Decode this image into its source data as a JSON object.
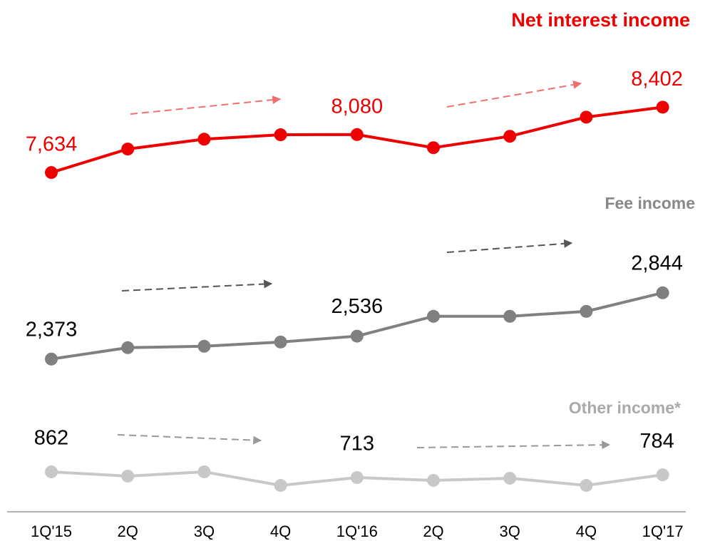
{
  "chart_data": {
    "type": "line",
    "categories": [
      "1Q'15",
      "2Q",
      "3Q",
      "4Q",
      "1Q'16",
      "2Q",
      "3Q",
      "4Q",
      "1Q'17"
    ],
    "series": [
      {
        "name": "Net interest income",
        "color": "#ee0000",
        "label_color": "#ee0000",
        "values": [
          7634,
          7910,
          8026,
          8078,
          8080,
          7926,
          8060,
          8285,
          8402
        ],
        "value_labels": [
          "7,634",
          null,
          null,
          null,
          "8,080",
          null,
          null,
          null,
          "8,402"
        ],
        "ylim": [
          7400,
          8740
        ]
      },
      {
        "name": "Fee income",
        "color": "#808080",
        "label_color": "#000000",
        "values": [
          2373,
          2454,
          2464,
          2494,
          2536,
          2677,
          2677,
          2712,
          2844
        ],
        "value_labels": [
          "2,373",
          null,
          null,
          null,
          "2,536",
          null,
          null,
          null,
          "2,844"
        ],
        "ylim": [
          2240,
          3000
        ]
      },
      {
        "name": "Other income*",
        "color": "#c8c8c8",
        "label_color": "#000000",
        "values": [
          862,
          750,
          862,
          508,
          713,
          639,
          695,
          508,
          784
        ],
        "value_labels": [
          "862",
          null,
          null,
          null,
          "713",
          null,
          null,
          null,
          "784"
        ],
        "ylim": [
          155,
          1270
        ]
      }
    ]
  }
}
